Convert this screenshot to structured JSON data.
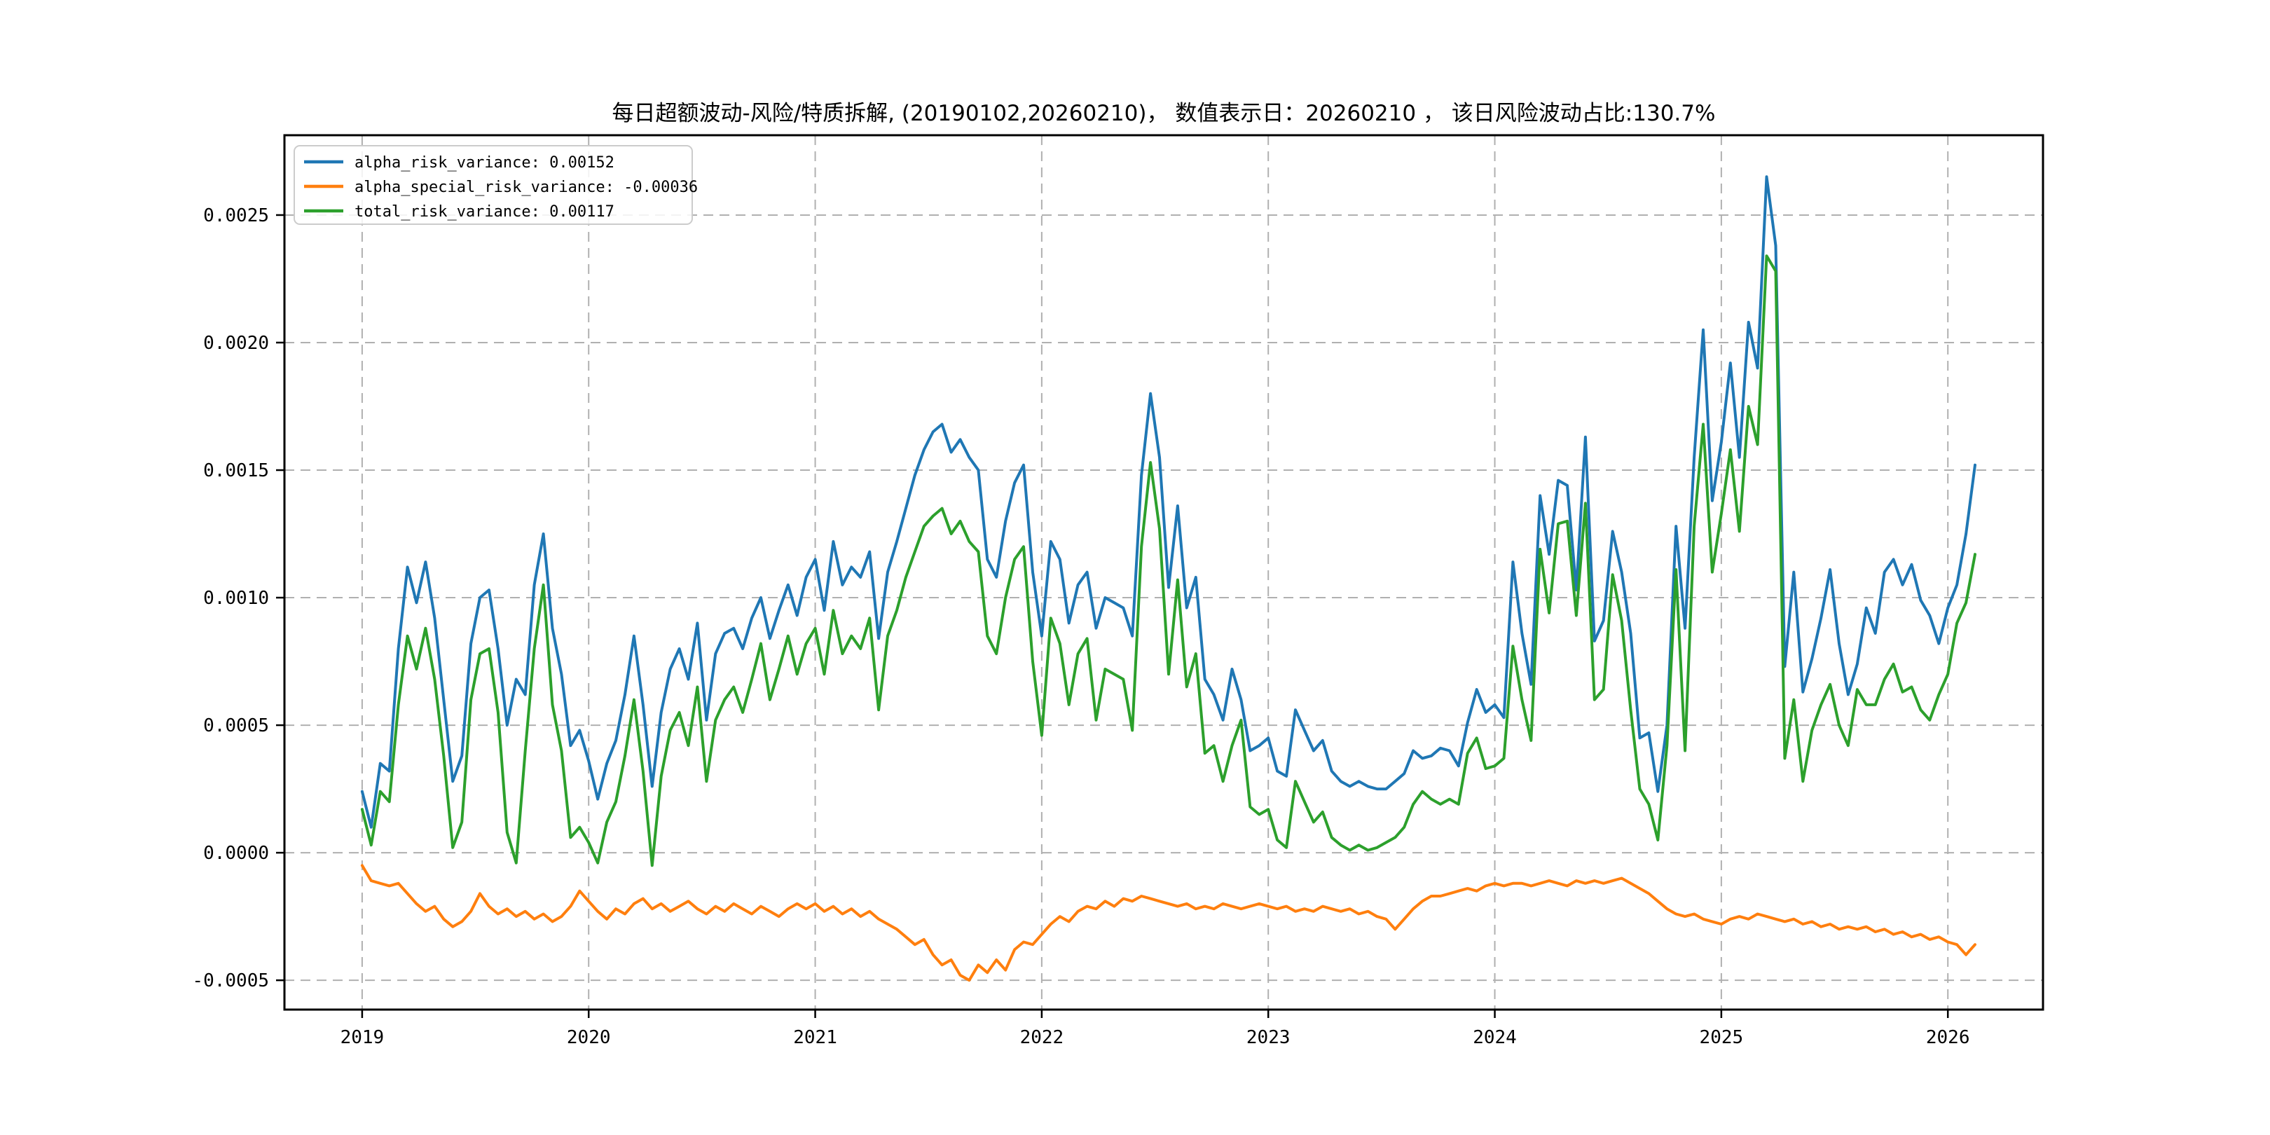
{
  "figure": {
    "background": "#ffffff",
    "type": "matplotlib-line-plot"
  },
  "chart_data": {
    "type": "line",
    "title": "每日超额波动-风险/特质拆解, (20190102,20260210)， 数值表示日：20260210 ， 该日风险波动占比:130.7%",
    "value_date": "20260210",
    "risk_ratio_pct": "130.7%",
    "date_range": [
      "20190102",
      "20260210"
    ],
    "grid": {
      "visible": true,
      "style": "dashed",
      "color": "#b0b0b0"
    },
    "legend": {
      "position": "upper-left",
      "border_color": "#cccccc",
      "background": "rgba(255,255,255,0.85)"
    },
    "x_axis": {
      "lim": [
        2018.657,
        2026.42
      ],
      "ticks": [
        2019,
        2020,
        2021,
        2022,
        2023,
        2024,
        2025,
        2026
      ],
      "labels": [
        "2019",
        "2020",
        "2021",
        "2022",
        "2023",
        "2024",
        "2025",
        "2026"
      ]
    },
    "y_axis": {
      "lim": [
        -0.000615,
        0.002813
      ],
      "ticks": [
        -0.0005,
        0.0,
        0.0005,
        0.001,
        0.0015,
        0.002,
        0.0025
      ],
      "labels": [
        "-0.0005",
        "0.0000",
        "0.0005",
        "0.0010",
        "0.0015",
        "0.0020",
        "0.0025"
      ]
    },
    "x": {
      "start": 2019.0,
      "step": 0.04,
      "count": 179,
      "unit": "year"
    },
    "series": [
      {
        "name": "alpha_risk_variance",
        "legend_label": "alpha_risk_variance: 0.00152",
        "last_value": 0.00152,
        "color": "#1f77b4",
        "values": [
          0.00024,
          0.0001,
          0.00035,
          0.00032,
          0.0008,
          0.00112,
          0.00098,
          0.00114,
          0.00092,
          0.0006,
          0.00028,
          0.00038,
          0.00082,
          0.001,
          0.00103,
          0.0008,
          0.0005,
          0.00068,
          0.00062,
          0.00105,
          0.00125,
          0.00088,
          0.0007,
          0.00042,
          0.00048,
          0.00036,
          0.00021,
          0.00035,
          0.00044,
          0.00062,
          0.00085,
          0.00058,
          0.00026,
          0.00055,
          0.00072,
          0.0008,
          0.00068,
          0.0009,
          0.00052,
          0.00078,
          0.00086,
          0.00088,
          0.0008,
          0.00092,
          0.001,
          0.00084,
          0.00095,
          0.00105,
          0.00093,
          0.00108,
          0.00115,
          0.00095,
          0.00122,
          0.00105,
          0.00112,
          0.00108,
          0.00118,
          0.00084,
          0.0011,
          0.00122,
          0.00135,
          0.00148,
          0.00158,
          0.00165,
          0.00168,
          0.00157,
          0.00162,
          0.00155,
          0.0015,
          0.00115,
          0.00108,
          0.0013,
          0.00145,
          0.00152,
          0.0011,
          0.00085,
          0.00122,
          0.00115,
          0.0009,
          0.00105,
          0.0011,
          0.00088,
          0.001,
          0.00098,
          0.00096,
          0.00085,
          0.00148,
          0.0018,
          0.00155,
          0.00104,
          0.00136,
          0.00096,
          0.00108,
          0.00068,
          0.00062,
          0.00052,
          0.00072,
          0.0006,
          0.0004,
          0.00042,
          0.00045,
          0.00032,
          0.0003,
          0.00056,
          0.00048,
          0.0004,
          0.00044,
          0.00032,
          0.00028,
          0.00026,
          0.00028,
          0.00026,
          0.00025,
          0.00025,
          0.00028,
          0.00031,
          0.0004,
          0.00037,
          0.00038,
          0.00041,
          0.0004,
          0.00034,
          0.00051,
          0.00064,
          0.00055,
          0.00058,
          0.00053,
          0.00114,
          0.00086,
          0.00066,
          0.0014,
          0.00117,
          0.00146,
          0.00144,
          0.00103,
          0.00163,
          0.00083,
          0.00091,
          0.00126,
          0.0011,
          0.00086,
          0.00045,
          0.00047,
          0.00024,
          0.0005,
          0.00128,
          0.00088,
          0.00155,
          0.00205,
          0.00138,
          0.00161,
          0.00192,
          0.00155,
          0.00208,
          0.0019,
          0.00265,
          0.00238,
          0.00073,
          0.0011,
          0.00063,
          0.00076,
          0.00092,
          0.00111,
          0.00082,
          0.00062,
          0.00074,
          0.00096,
          0.00086,
          0.0011,
          0.00115,
          0.00105,
          0.00113,
          0.00099,
          0.00093,
          0.00082,
          0.00096,
          0.00105,
          0.00125,
          0.00152
        ]
      },
      {
        "name": "alpha_special_risk_variance",
        "legend_label": "alpha_special_risk_variance: -0.00036",
        "last_value": -0.00036,
        "color": "#ff7f0e",
        "values": [
          -5e-05,
          -0.00011,
          -0.00012,
          -0.00013,
          -0.00012,
          -0.00016,
          -0.0002,
          -0.00023,
          -0.00021,
          -0.00026,
          -0.00029,
          -0.00027,
          -0.00023,
          -0.00016,
          -0.00021,
          -0.00024,
          -0.00022,
          -0.00025,
          -0.00023,
          -0.00026,
          -0.00024,
          -0.00027,
          -0.00025,
          -0.00021,
          -0.00015,
          -0.00019,
          -0.00023,
          -0.00026,
          -0.00022,
          -0.00024,
          -0.0002,
          -0.00018,
          -0.00022,
          -0.0002,
          -0.00023,
          -0.00021,
          -0.00019,
          -0.00022,
          -0.00024,
          -0.00021,
          -0.00023,
          -0.0002,
          -0.00022,
          -0.00024,
          -0.00021,
          -0.00023,
          -0.00025,
          -0.00022,
          -0.0002,
          -0.00022,
          -0.0002,
          -0.00023,
          -0.00021,
          -0.00024,
          -0.00022,
          -0.00025,
          -0.00023,
          -0.00026,
          -0.00028,
          -0.0003,
          -0.00033,
          -0.00036,
          -0.00034,
          -0.0004,
          -0.00044,
          -0.00042,
          -0.00048,
          -0.0005,
          -0.00044,
          -0.00047,
          -0.00042,
          -0.00046,
          -0.00038,
          -0.00035,
          -0.00036,
          -0.00032,
          -0.00028,
          -0.00025,
          -0.00027,
          -0.00023,
          -0.00021,
          -0.00022,
          -0.00019,
          -0.00021,
          -0.00018,
          -0.00019,
          -0.00017,
          -0.00018,
          -0.00019,
          -0.0002,
          -0.00021,
          -0.0002,
          -0.00022,
          -0.00021,
          -0.00022,
          -0.0002,
          -0.00021,
          -0.00022,
          -0.00021,
          -0.0002,
          -0.00021,
          -0.00022,
          -0.00021,
          -0.00023,
          -0.00022,
          -0.00023,
          -0.00021,
          -0.00022,
          -0.00023,
          -0.00022,
          -0.00024,
          -0.00023,
          -0.00025,
          -0.00026,
          -0.0003,
          -0.00026,
          -0.00022,
          -0.00019,
          -0.00017,
          -0.00017,
          -0.00016,
          -0.00015,
          -0.00014,
          -0.00015,
          -0.00013,
          -0.00012,
          -0.00013,
          -0.00012,
          -0.00012,
          -0.00013,
          -0.00012,
          -0.00011,
          -0.00012,
          -0.00013,
          -0.00011,
          -0.00012,
          -0.00011,
          -0.00012,
          -0.00011,
          -0.0001,
          -0.00012,
          -0.00014,
          -0.00016,
          -0.00019,
          -0.00022,
          -0.00024,
          -0.00025,
          -0.00024,
          -0.00026,
          -0.00027,
          -0.00028,
          -0.00026,
          -0.00025,
          -0.00026,
          -0.00024,
          -0.00025,
          -0.00026,
          -0.00027,
          -0.00026,
          -0.00028,
          -0.00027,
          -0.00029,
          -0.00028,
          -0.0003,
          -0.00029,
          -0.0003,
          -0.00029,
          -0.00031,
          -0.0003,
          -0.00032,
          -0.00031,
          -0.00033,
          -0.00032,
          -0.00034,
          -0.00033,
          -0.00035,
          -0.00036,
          -0.0004,
          -0.00036
        ]
      },
      {
        "name": "total_risk_variance",
        "legend_label": "total_risk_variance: 0.00117",
        "last_value": 0.00117,
        "color": "#2ca02c",
        "values": [
          0.00017,
          3e-05,
          0.00024,
          0.0002,
          0.00058,
          0.00085,
          0.00072,
          0.00088,
          0.00068,
          0.00038,
          2e-05,
          0.00012,
          0.0006,
          0.00078,
          0.0008,
          0.00055,
          8e-05,
          -4e-05,
          0.0004,
          0.0008,
          0.00105,
          0.00058,
          0.0004,
          6e-05,
          0.0001,
          4e-05,
          -4e-05,
          0.00012,
          0.0002,
          0.00038,
          0.0006,
          0.00032,
          -5e-05,
          0.0003,
          0.00048,
          0.00055,
          0.00042,
          0.00065,
          0.00028,
          0.00052,
          0.0006,
          0.00065,
          0.00055,
          0.00068,
          0.00082,
          0.0006,
          0.00072,
          0.00085,
          0.0007,
          0.00082,
          0.00088,
          0.0007,
          0.00095,
          0.00078,
          0.00085,
          0.0008,
          0.00092,
          0.00056,
          0.00085,
          0.00095,
          0.00108,
          0.00118,
          0.00128,
          0.00132,
          0.00135,
          0.00125,
          0.0013,
          0.00122,
          0.00118,
          0.00085,
          0.00078,
          0.001,
          0.00115,
          0.0012,
          0.00075,
          0.00046,
          0.00092,
          0.00082,
          0.00058,
          0.00078,
          0.00084,
          0.00052,
          0.00072,
          0.0007,
          0.00068,
          0.00048,
          0.0012,
          0.00153,
          0.00127,
          0.0007,
          0.00107,
          0.00065,
          0.00078,
          0.00039,
          0.00042,
          0.00028,
          0.00042,
          0.00052,
          0.00018,
          0.00015,
          0.00017,
          5e-05,
          2e-05,
          0.00028,
          0.0002,
          0.00012,
          0.00016,
          6e-05,
          3e-05,
          1e-05,
          3e-05,
          1e-05,
          2e-05,
          4e-05,
          6e-05,
          0.0001,
          0.00019,
          0.00024,
          0.00021,
          0.00019,
          0.00021,
          0.00019,
          0.00039,
          0.00045,
          0.00033,
          0.00034,
          0.00037,
          0.00081,
          0.0006,
          0.00044,
          0.00119,
          0.00094,
          0.00129,
          0.0013,
          0.00093,
          0.00137,
          0.0006,
          0.00064,
          0.00109,
          0.00091,
          0.00056,
          0.00025,
          0.00019,
          5e-05,
          0.00042,
          0.00111,
          0.0004,
          0.00128,
          0.00168,
          0.0011,
          0.00133,
          0.00158,
          0.00126,
          0.00175,
          0.0016,
          0.00234,
          0.00228,
          0.00037,
          0.0006,
          0.00028,
          0.00048,
          0.00058,
          0.00066,
          0.0005,
          0.00042,
          0.00064,
          0.00058,
          0.00058,
          0.00068,
          0.00074,
          0.00063,
          0.00065,
          0.00056,
          0.00052,
          0.00062,
          0.0007,
          0.0009,
          0.00098,
          0.00117
        ]
      }
    ]
  }
}
